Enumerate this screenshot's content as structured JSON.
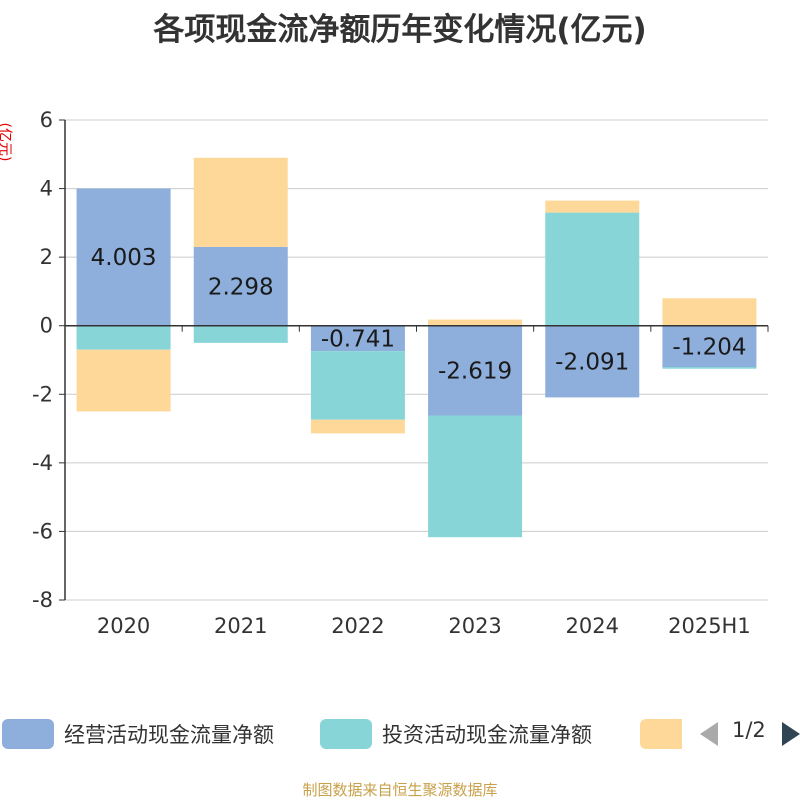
{
  "title": "各项现金流净额历年变化情况(亿元)",
  "unit_label": "(亿元)",
  "source": "制图数据来自恒生聚源数据库",
  "legend": {
    "pager": "1/2",
    "items": [
      {
        "label": "经营活动现金流量净额",
        "color": "#8eaedb"
      },
      {
        "label": "投资活动现金流量净额",
        "color": "#88d5d8"
      },
      {
        "label": "",
        "color": "#fed898"
      }
    ]
  },
  "chart_data": {
    "type": "bar",
    "stacked": true,
    "categories": [
      "2020",
      "2021",
      "2022",
      "2023",
      "2024",
      "2025H1"
    ],
    "ylim": [
      -8,
      6
    ],
    "yticks": [
      6,
      4,
      2,
      0,
      -2,
      -4,
      -6,
      -8
    ],
    "grid": true,
    "legend_position": "bottom",
    "series": [
      {
        "name": "经营活动现金流量净额",
        "color": "#8eaedb",
        "values": [
          4.003,
          2.298,
          -0.741,
          -2.619,
          -2.091,
          -1.204
        ],
        "labels_shown": true
      },
      {
        "name": "投资活动现金流量净额",
        "color": "#88d5d8",
        "values": [
          -0.7,
          -0.5,
          -2.0,
          -3.55,
          3.3,
          -0.05
        ]
      },
      {
        "color": "#fed898",
        "values": [
          -1.8,
          2.6,
          -0.4,
          0.18,
          0.35,
          0.8
        ]
      }
    ]
  }
}
